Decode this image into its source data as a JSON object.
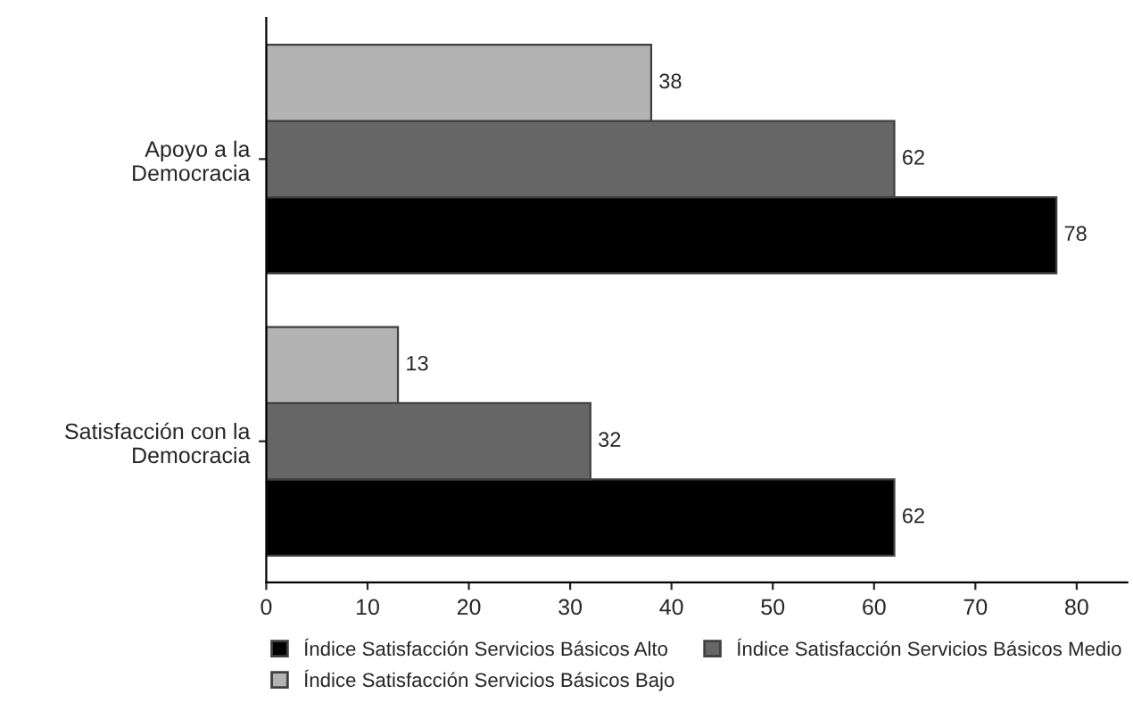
{
  "chart_data": {
    "type": "bar",
    "orientation": "horizontal",
    "categories": [
      "Apoyo a la\nDemocracia",
      "Satisfacción con la\nDemocracia"
    ],
    "series": [
      {
        "name": "Índice Satisfacción Servicios Básicos Alto",
        "color": "#000000",
        "values": [
          78,
          62
        ]
      },
      {
        "name": "Índice Satisfacción Servicios Básicos Medio",
        "color": "#666666",
        "values": [
          62,
          32
        ]
      },
      {
        "name": "Índice Satisfacción Servicios Básicos Bajo",
        "color": "#b3b3b3",
        "values": [
          38,
          13
        ]
      }
    ],
    "xlim": [
      0,
      85
    ],
    "xticks": [
      0,
      10,
      20,
      30,
      40,
      50,
      60,
      70,
      80
    ],
    "data_labels": true,
    "grid": false,
    "legend": "bottom"
  }
}
